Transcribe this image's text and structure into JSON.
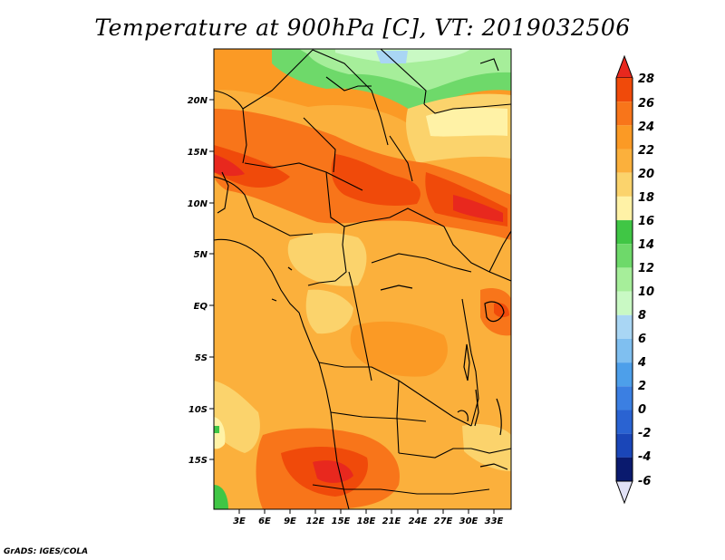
{
  "title": "Temperature at 900hPa [C], VT: 2019032506",
  "credit": "GrADS: IGES/COLA",
  "map": {
    "region": "Central Africa",
    "variable": "Temperature",
    "level": "900hPa",
    "units": "C",
    "valid_time": "2019032506",
    "lon_labels": [
      "3E",
      "6E",
      "9E",
      "12E",
      "15E",
      "18E",
      "21E",
      "24E",
      "27E",
      "30E",
      "33E"
    ],
    "lat_labels": [
      "20N",
      "15N",
      "10N",
      "5N",
      "EQ",
      "5S",
      "10S",
      "15S"
    ]
  },
  "colorbar": {
    "values": [
      "28",
      "26",
      "24",
      "22",
      "20",
      "18",
      "16",
      "14",
      "12",
      "10",
      "8",
      "6",
      "4",
      "2",
      "0",
      "-2",
      "-4",
      "-6"
    ],
    "colors": [
      "#e8281e",
      "#f04a0a",
      "#f8751a",
      "#fb9a25",
      "#fbb03c",
      "#fbd36c",
      "#fff2a6",
      "#40c645",
      "#6ed96a",
      "#a6ee9a",
      "#c9f9c4",
      "#a9d6f4",
      "#7fbff0",
      "#4d9fea",
      "#3b7fe2",
      "#2a63d2",
      "#1a46b8",
      "#0d2aa0",
      "#0a1a6e"
    ],
    "underflow_color": "#e2e2f6"
  }
}
